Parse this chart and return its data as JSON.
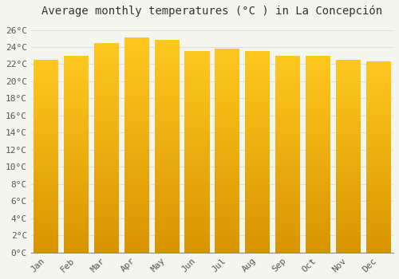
{
  "title": "Average monthly temperatures (°C ) in La Concepción",
  "months": [
    "Jan",
    "Feb",
    "Mar",
    "Apr",
    "May",
    "Jun",
    "Jul",
    "Aug",
    "Sep",
    "Oct",
    "Nov",
    "Dec"
  ],
  "values": [
    22.5,
    23.0,
    24.5,
    25.1,
    24.8,
    23.5,
    23.8,
    23.5,
    23.0,
    23.0,
    22.5,
    22.3
  ],
  "bar_color_top": "#FFB800",
  "bar_color_bottom": "#FF9500",
  "background_color": "#f5f5f0",
  "plot_bg_color": "#f5f5f0",
  "grid_color": "#e0e0d8",
  "ylim": [
    0,
    27
  ],
  "ytick_step": 2,
  "title_fontsize": 10,
  "tick_fontsize": 8,
  "font_family": "monospace"
}
